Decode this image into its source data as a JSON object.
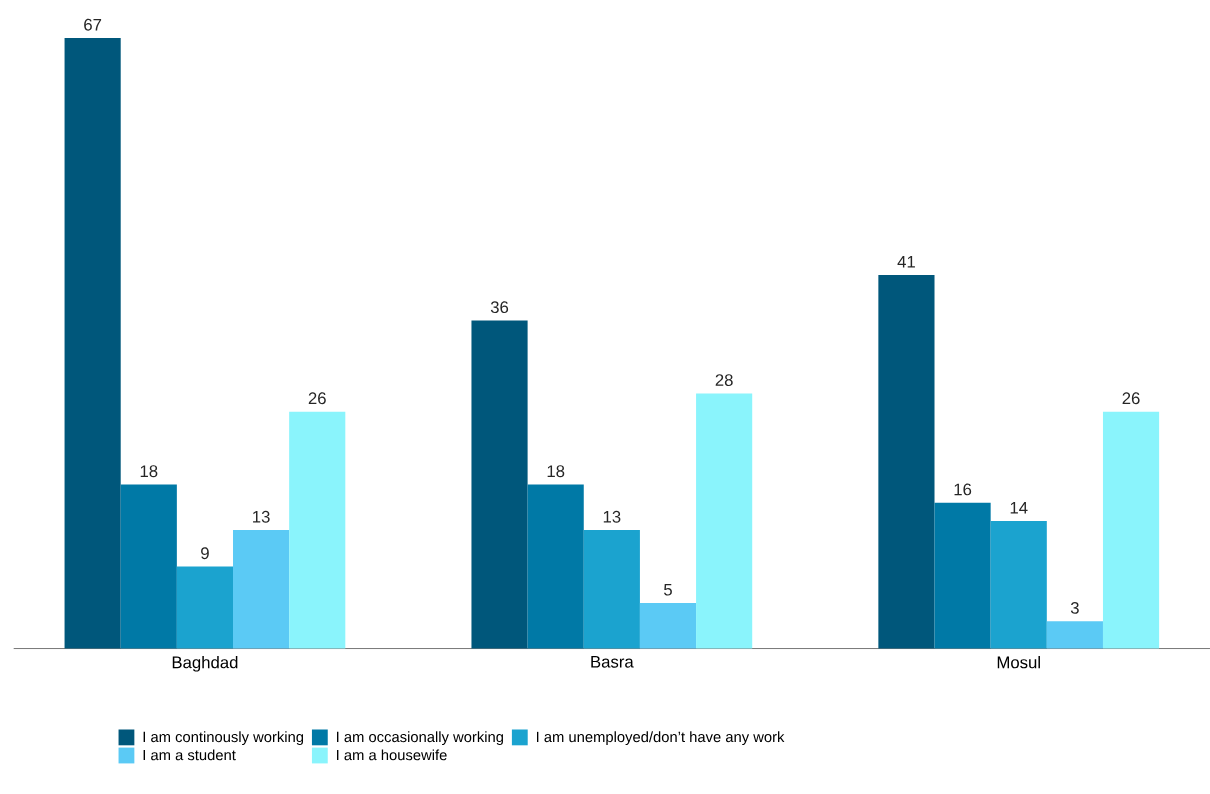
{
  "chart_data": {
    "type": "bar",
    "categories": [
      "Baghdad",
      "Basra",
      "Mosul"
    ],
    "series": [
      {
        "name": "I am continously working",
        "color": "#00577b",
        "values": [
          67,
          36,
          41
        ]
      },
      {
        "name": "I am occasionally working",
        "color": "#0079a6",
        "values": [
          18,
          18,
          16
        ]
      },
      {
        "name": "I am unemployed/don’t have any work",
        "color": "#1ba3cf",
        "values": [
          9,
          13,
          14
        ]
      },
      {
        "name": "I am  a student",
        "color": "#5bcaf5",
        "values": [
          13,
          5,
          3
        ]
      },
      {
        "name": "I am a housewife",
        "color": "#8af4fc",
        "values": [
          26,
          28,
          26
        ]
      }
    ],
    "data_labels": true,
    "legend": "bottom"
  }
}
